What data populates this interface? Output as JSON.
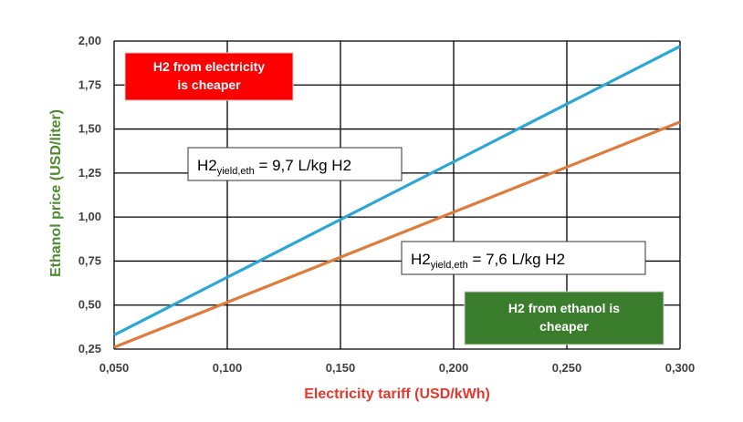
{
  "chart_data": {
    "type": "line",
    "xlabel": "Electricity tariff (USD/kWh)",
    "ylabel": "Ethanol price (USD/liter)",
    "xlim": [
      0.05,
      0.3
    ],
    "ylim": [
      0.25,
      2.0
    ],
    "x_ticks": [
      "0,050",
      "0,100",
      "0,150",
      "0,200",
      "0,250",
      "0,300"
    ],
    "y_ticks": [
      "0,25",
      "0,50",
      "0,75",
      "1,00",
      "1,25",
      "1,50",
      "1,75",
      "2,00"
    ],
    "grid": true,
    "series": [
      {
        "color": "#2aa7d6",
        "x": [
          0.05,
          0.3
        ],
        "y": [
          0.33,
          1.97
        ]
      },
      {
        "color": "#e07b3c",
        "x": [
          0.05,
          0.3
        ],
        "y": [
          0.26,
          1.54
        ]
      }
    ],
    "annotations": [
      {
        "main": "H2",
        "sub": "yield,eth",
        "rest": " = 9,7 L/kg H2"
      },
      {
        "main": "H2",
        "sub": "yield,eth",
        "rest": " = 7,6 L/kg H2"
      }
    ],
    "regions": [
      {
        "lines": [
          "H2 from electricity",
          "is cheaper"
        ],
        "color": "#ff0000"
      },
      {
        "lines": [
          "H2 from ethanol is",
          "cheaper"
        ],
        "color": "#3a7d2c"
      }
    ],
    "colors": {
      "xlabel": "#e8362c",
      "ylabel": "#4e8a2e"
    }
  }
}
